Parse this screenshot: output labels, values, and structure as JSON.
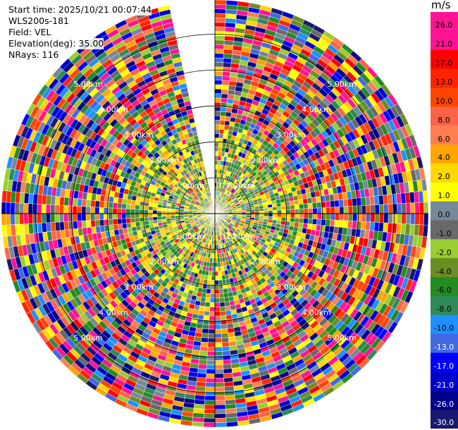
{
  "info": {
    "start_time": "Start time: 2025/10/21 00:07:44",
    "station": "WLS200s-181",
    "field": "Field: VEL",
    "elevation": "Elevation(deg): 35.00",
    "nrays": "NRays: 116"
  },
  "colorbar": {
    "unit": "m/s",
    "ticks": [
      "26.0",
      "21.0",
      "17.0",
      "13.0",
      "10.0",
      "8.0",
      "6.0",
      "4.0",
      "2.0",
      "1.0",
      "0.0",
      "-1.0",
      "-2.0",
      "-4.0",
      "-6.0",
      "-8.0",
      "-10.0",
      "-13.0",
      "-17.0",
      "-21.0",
      "-26.0",
      "-30.0"
    ],
    "colors": [
      "#ff1493",
      "#ff1493",
      "#ff0000",
      "#ff2400",
      "#ff4500",
      "#ff6347",
      "#ff7f50",
      "#ffa500",
      "#ffd700",
      "#ffff00",
      "#778899",
      "#696969",
      "#9acd32",
      "#6b8e23",
      "#228b22",
      "#2e8b57",
      "#1e90ff",
      "#4169e1",
      "#0000ff",
      "#0000cd",
      "#00008b",
      "#191970"
    ]
  },
  "chart_data": {
    "type": "heatmap",
    "projection": "polar-ppi",
    "field": "VEL",
    "units": "m/s",
    "elevation_deg": 35.0,
    "nrays": 116,
    "range_rings_km": [
      1.0,
      2.0,
      3.0,
      4.0,
      5.0
    ],
    "range_ring_labels": [
      "1.00km",
      "2.00km",
      "3.00km",
      "4.00km",
      "5.00km"
    ],
    "max_range_km": 5.0,
    "missing_sector_deg": [
      345,
      360
    ],
    "color_scale_min": -30.0,
    "color_scale_max": 26.0
  }
}
